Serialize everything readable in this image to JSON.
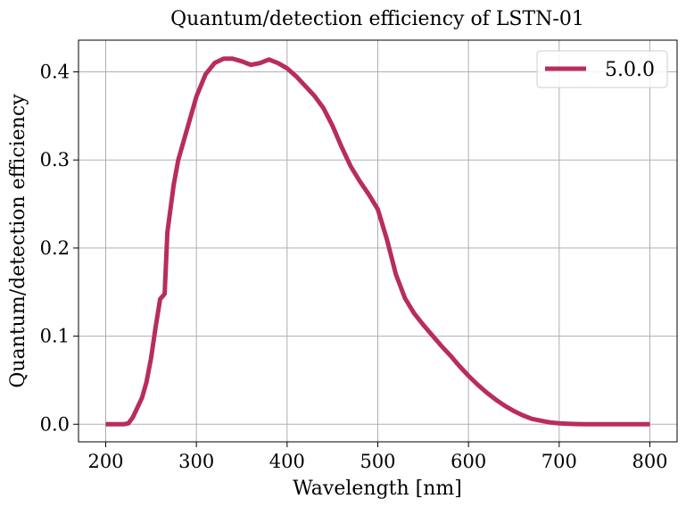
{
  "chart_data": {
    "type": "line",
    "title": "Quantum/detection efficiency of LSTN-01",
    "xlabel": "Wavelength [nm]",
    "ylabel": "Quantum/detection efficiency",
    "xlim": [
      170,
      830
    ],
    "ylim": [
      -0.02,
      0.436
    ],
    "xticks": [
      200,
      300,
      400,
      500,
      600,
      700,
      800
    ],
    "yticks": [
      0.0,
      0.1,
      0.2,
      0.3,
      0.4
    ],
    "xtick_labels": [
      "200",
      "300",
      "400",
      "500",
      "600",
      "700",
      "800"
    ],
    "ytick_labels": [
      "0.0",
      "0.1",
      "0.2",
      "0.3",
      "0.4"
    ],
    "grid": true,
    "legend_position": "top-right",
    "series": [
      {
        "name": "5.0.0",
        "color": "#b82d59",
        "x": [
          200,
          210,
          220,
          225,
          230,
          240,
          245,
          250,
          255,
          260,
          265,
          268,
          275,
          280,
          290,
          300,
          310,
          320,
          330,
          340,
          350,
          360,
          370,
          380,
          390,
          400,
          410,
          420,
          430,
          440,
          450,
          460,
          470,
          480,
          490,
          500,
          510,
          520,
          530,
          540,
          550,
          560,
          570,
          580,
          590,
          600,
          610,
          620,
          630,
          640,
          650,
          660,
          670,
          680,
          690,
          700,
          710,
          720,
          730,
          740,
          750,
          760,
          770,
          780,
          790,
          800
        ],
        "y": [
          0.0,
          0.0,
          0.0,
          0.001,
          0.008,
          0.03,
          0.048,
          0.075,
          0.11,
          0.142,
          0.148,
          0.218,
          0.272,
          0.3,
          0.336,
          0.372,
          0.397,
          0.41,
          0.415,
          0.415,
          0.412,
          0.408,
          0.41,
          0.414,
          0.41,
          0.404,
          0.395,
          0.384,
          0.373,
          0.359,
          0.339,
          0.315,
          0.293,
          0.276,
          0.261,
          0.244,
          0.21,
          0.17,
          0.143,
          0.126,
          0.113,
          0.101,
          0.089,
          0.078,
          0.066,
          0.055,
          0.045,
          0.036,
          0.028,
          0.021,
          0.015,
          0.01,
          0.006,
          0.004,
          0.002,
          0.001,
          0.0005,
          0.0002,
          0.0,
          0.0,
          0.0,
          0.0,
          0.0,
          0.0,
          0.0,
          0.0
        ]
      }
    ]
  }
}
